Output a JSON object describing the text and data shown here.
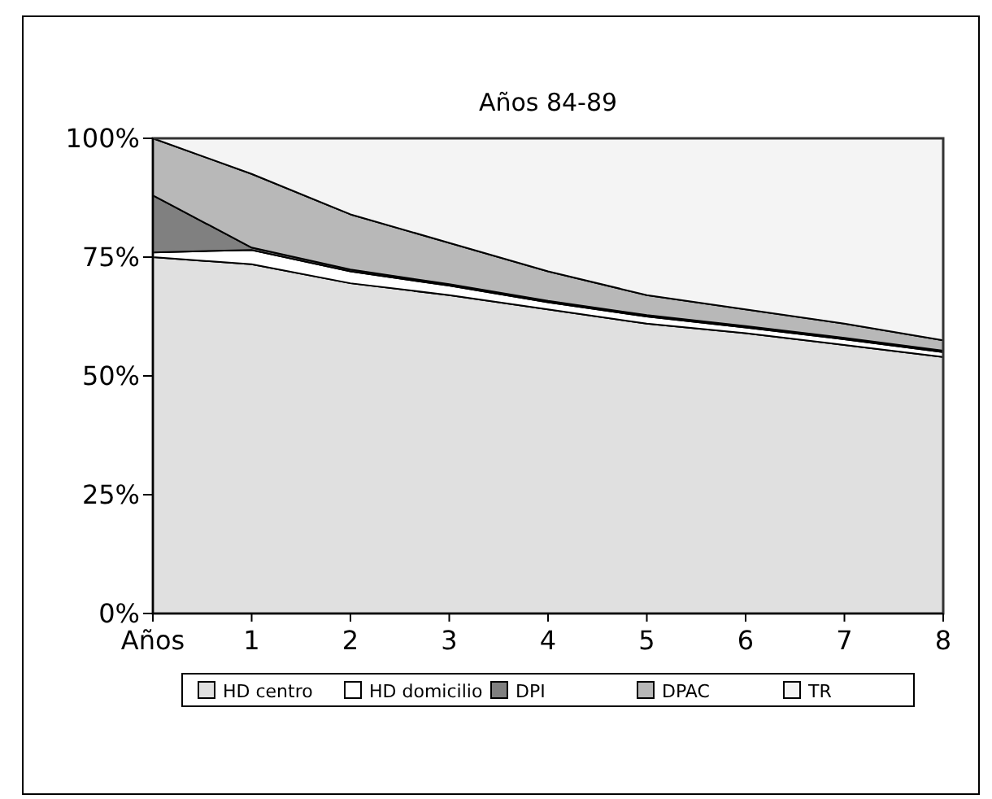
{
  "chart_data": {
    "type": "area",
    "stacked": true,
    "title": "Años 84-89",
    "categories": [
      "Años",
      "1",
      "2",
      "3",
      "4",
      "5",
      "6",
      "7",
      "8"
    ],
    "series": [
      {
        "name": "HD centro",
        "color": "#e0e0e0",
        "values": [
          75,
          73.5,
          69.5,
          67,
          64,
          61,
          59,
          56.5,
          54
        ]
      },
      {
        "name": "HD domicilio",
        "color": "#ffffff",
        "values": [
          1,
          3,
          2.5,
          2,
          1.5,
          1.5,
          1.2,
          1.2,
          1
        ]
      },
      {
        "name": "DPI",
        "color": "#808080",
        "values": [
          12,
          0.5,
          0.4,
          0.3,
          0.3,
          0.3,
          0.3,
          0.3,
          0.3
        ]
      },
      {
        "name": "DPAC",
        "color": "#b8b8b8",
        "values": [
          12,
          15.5,
          11.6,
          8.7,
          6.2,
          4.2,
          3.5,
          3,
          2.2
        ]
      },
      {
        "name": "TR",
        "color": "#f4f4f4",
        "values": [
          0,
          7.5,
          16,
          22,
          28,
          33,
          36,
          39,
          42.5
        ]
      }
    ],
    "ylim": [
      0,
      100
    ],
    "yticks": [
      {
        "value": 0,
        "label": "0%"
      },
      {
        "value": 25,
        "label": "25%"
      },
      {
        "value": 50,
        "label": "50%"
      },
      {
        "value": 75,
        "label": "75%"
      },
      {
        "value": 100,
        "label": "100%"
      }
    ],
    "grid": false,
    "legend": "bottom"
  }
}
